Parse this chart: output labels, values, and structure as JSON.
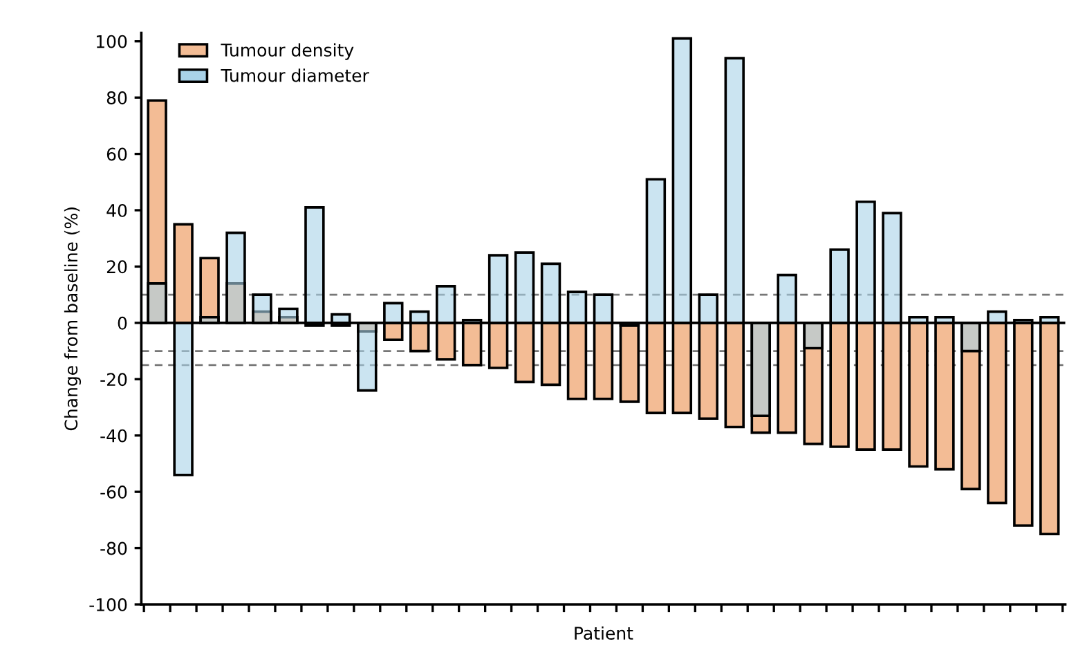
{
  "chart_data": {
    "type": "bar",
    "xlabel": "Patient",
    "ylabel": "Change from baseline (%)",
    "categories": [
      null,
      null,
      null,
      null,
      null,
      null,
      null,
      null,
      null,
      null,
      null,
      null,
      null,
      null,
      null,
      null,
      null,
      null,
      null,
      null,
      null,
      null,
      null,
      null,
      null,
      null,
      null,
      null,
      null,
      null,
      null,
      null,
      null,
      null,
      null
    ],
    "series": [
      {
        "name": "Tumour density",
        "color": "#f3bc95",
        "values": [
          79,
          35,
          23,
          14,
          4,
          2,
          -1,
          -1,
          -3,
          -6,
          -10,
          -13,
          -15,
          -16,
          -21,
          -22,
          -27,
          -27,
          -28,
          -32,
          -32,
          -34,
          -37,
          -39,
          -39,
          -43,
          -44,
          -45,
          -45,
          -51,
          -52,
          -59,
          -64,
          -72,
          -75
        ]
      },
      {
        "name": "Tumour diameter",
        "color": "#a9d2e8",
        "values": [
          14,
          -54,
          2,
          32,
          10,
          5,
          41,
          3,
          -24,
          7,
          4,
          13,
          1,
          24,
          25,
          21,
          11,
          10,
          -1,
          51,
          101,
          10,
          94,
          -33,
          17,
          -9,
          26,
          43,
          39,
          2,
          2,
          -10,
          4,
          1,
          2
        ]
      }
    ],
    "ylim": [
      -100,
      103
    ],
    "yticks": [
      -100,
      -80,
      -60,
      -40,
      -20,
      0,
      20,
      40,
      60,
      80,
      100
    ],
    "ref_lines": [
      {
        "axis": "y",
        "value": 0,
        "color": "#000000",
        "line_style": "solid"
      },
      {
        "axis": "y",
        "value": 10,
        "color": "#777777",
        "line_style": "dashed"
      },
      {
        "axis": "y",
        "value": -10,
        "color": "#777777",
        "line_style": "dashed"
      },
      {
        "axis": "y",
        "value": -15,
        "color": "#777777",
        "line_style": "dashed"
      }
    ],
    "legend": "top left",
    "grid": false
  }
}
